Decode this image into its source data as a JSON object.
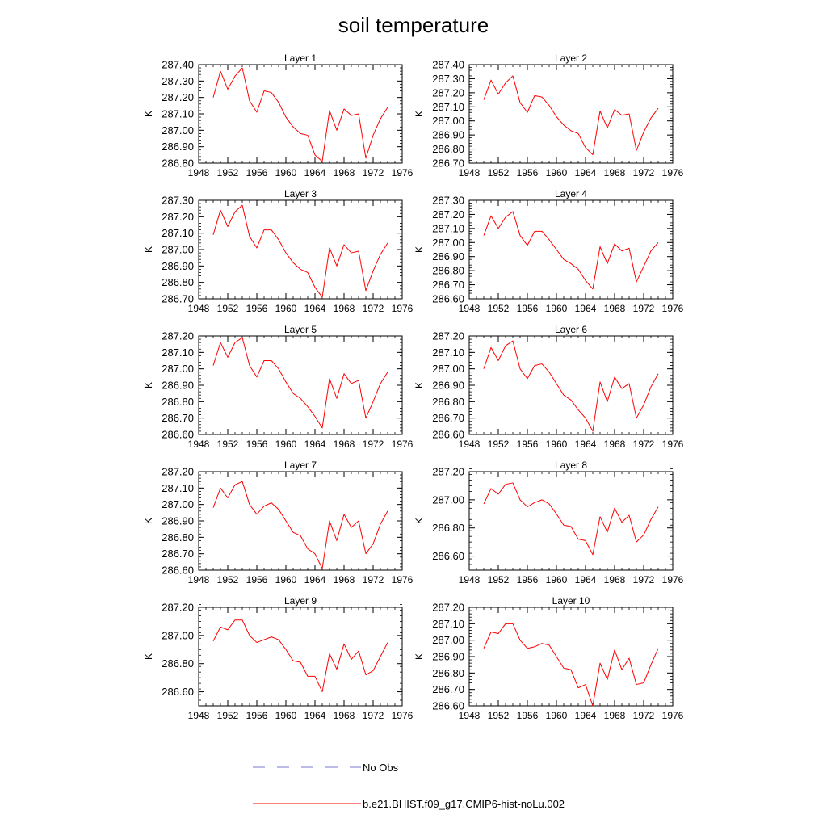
{
  "title": "soil temperature",
  "legend": {
    "items": [
      {
        "label": "No Obs",
        "color": "#7777cc",
        "dash": true
      },
      {
        "label": "b.e21.BHIST.f09_g17.CMIP6-hist-noLu.002",
        "color": "#ff0000",
        "dash": false
      }
    ]
  },
  "chart_data": [
    {
      "type": "line",
      "title": "Layer 1",
      "xlabel": "",
      "ylabel": "K",
      "xlim": [
        1948,
        1976
      ],
      "ylim": [
        286.8,
        287.4
      ],
      "xticks": [
        1948,
        1952,
        1956,
        1960,
        1964,
        1968,
        1972,
        1976
      ],
      "xtick_labels": [
        "1948",
        "1952",
        "1956",
        "1960",
        "1964",
        "1968",
        "1972",
        "1976"
      ],
      "yticks": [
        286.8,
        286.9,
        287.0,
        287.1,
        287.2,
        287.3,
        287.4
      ],
      "ytick_labels": [
        "286.80",
        "286.90",
        "287.00",
        "287.10",
        "287.20",
        "287.30",
        "287.40"
      ],
      "x": [
        1950,
        1951,
        1952,
        1953,
        1954,
        1955,
        1956,
        1957,
        1958,
        1959,
        1960,
        1961,
        1962,
        1963,
        1964,
        1965,
        1966,
        1967,
        1968,
        1969,
        1970,
        1971,
        1972,
        1973,
        1974
      ],
      "series": [
        {
          "name": "b.e21.BHIST.f09_g17.CMIP6-hist-noLu.002",
          "values": [
            287.2,
            287.36,
            287.25,
            287.33,
            287.38,
            287.18,
            287.11,
            287.24,
            287.23,
            287.17,
            287.08,
            287.02,
            286.98,
            286.97,
            286.85,
            286.81,
            287.12,
            287.0,
            287.13,
            287.09,
            287.1,
            286.83,
            286.97,
            287.07,
            287.14
          ]
        }
      ]
    },
    {
      "type": "line",
      "title": "Layer 2",
      "xlabel": "",
      "ylabel": "K",
      "xlim": [
        1948,
        1976
      ],
      "ylim": [
        286.7,
        287.4
      ],
      "xticks": [
        1948,
        1952,
        1956,
        1960,
        1964,
        1968,
        1972,
        1976
      ],
      "xtick_labels": [
        "1948",
        "1952",
        "1956",
        "1960",
        "1964",
        "1968",
        "1972",
        "1976"
      ],
      "yticks": [
        286.7,
        286.8,
        286.9,
        287.0,
        287.1,
        287.2,
        287.3,
        287.4
      ],
      "ytick_labels": [
        "286.70",
        "286.80",
        "286.90",
        "287.00",
        "287.10",
        "287.20",
        "287.30",
        "287.40"
      ],
      "x": [
        1950,
        1951,
        1952,
        1953,
        1954,
        1955,
        1956,
        1957,
        1958,
        1959,
        1960,
        1961,
        1962,
        1963,
        1964,
        1965,
        1966,
        1967,
        1968,
        1969,
        1970,
        1971,
        1972,
        1973,
        1974
      ],
      "series": [
        {
          "name": "b.e21.BHIST.f09_g17.CMIP6-hist-noLu.002",
          "values": [
            287.15,
            287.29,
            287.19,
            287.27,
            287.32,
            287.13,
            287.06,
            287.18,
            287.17,
            287.11,
            287.03,
            286.97,
            286.93,
            286.91,
            286.81,
            286.76,
            287.07,
            286.95,
            287.08,
            287.04,
            287.05,
            286.79,
            286.92,
            287.02,
            287.09
          ]
        }
      ]
    },
    {
      "type": "line",
      "title": "Layer 3",
      "xlabel": "",
      "ylabel": "K",
      "xlim": [
        1948,
        1976
      ],
      "ylim": [
        286.7,
        287.3
      ],
      "xticks": [
        1948,
        1952,
        1956,
        1960,
        1964,
        1968,
        1972,
        1976
      ],
      "xtick_labels": [
        "1948",
        "1952",
        "1956",
        "1960",
        "1964",
        "1968",
        "1972",
        "1976"
      ],
      "yticks": [
        286.7,
        286.8,
        286.9,
        287.0,
        287.1,
        287.2,
        287.3
      ],
      "ytick_labels": [
        "286.70",
        "286.80",
        "286.90",
        "287.00",
        "287.10",
        "287.20",
        "287.30"
      ],
      "x": [
        1950,
        1951,
        1952,
        1953,
        1954,
        1955,
        1956,
        1957,
        1958,
        1959,
        1960,
        1961,
        1962,
        1963,
        1964,
        1965,
        1966,
        1967,
        1968,
        1969,
        1970,
        1971,
        1972,
        1973,
        1974
      ],
      "series": [
        {
          "name": "b.e21.BHIST.f09_g17.CMIP6-hist-noLu.002",
          "values": [
            287.09,
            287.24,
            287.14,
            287.23,
            287.27,
            287.08,
            287.01,
            287.12,
            287.12,
            287.06,
            286.98,
            286.92,
            286.88,
            286.86,
            286.77,
            286.71,
            287.01,
            286.9,
            287.03,
            286.98,
            286.99,
            286.75,
            286.87,
            286.97,
            287.04
          ]
        }
      ]
    },
    {
      "type": "line",
      "title": "Layer 4",
      "xlabel": "",
      "ylabel": "K",
      "xlim": [
        1948,
        1976
      ],
      "ylim": [
        286.6,
        287.3
      ],
      "xticks": [
        1948,
        1952,
        1956,
        1960,
        1964,
        1968,
        1972,
        1976
      ],
      "xtick_labels": [
        "1948",
        "1952",
        "1956",
        "1960",
        "1964",
        "1968",
        "1972",
        "1976"
      ],
      "yticks": [
        286.6,
        286.7,
        286.8,
        286.9,
        287.0,
        287.1,
        287.2,
        287.3
      ],
      "ytick_labels": [
        "286.60",
        "286.70",
        "286.80",
        "286.90",
        "287.00",
        "287.10",
        "287.20",
        "287.30"
      ],
      "x": [
        1950,
        1951,
        1952,
        1953,
        1954,
        1955,
        1956,
        1957,
        1958,
        1959,
        1960,
        1961,
        1962,
        1963,
        1964,
        1965,
        1966,
        1967,
        1968,
        1969,
        1970,
        1971,
        1972,
        1973,
        1974
      ],
      "series": [
        {
          "name": "b.e21.BHIST.f09_g17.CMIP6-hist-noLu.002",
          "values": [
            287.05,
            287.19,
            287.1,
            287.18,
            287.22,
            287.05,
            286.98,
            287.08,
            287.08,
            287.02,
            286.95,
            286.88,
            286.85,
            286.81,
            286.73,
            286.67,
            286.97,
            286.85,
            286.99,
            286.94,
            286.96,
            286.72,
            286.83,
            286.94,
            287.0
          ]
        }
      ]
    },
    {
      "type": "line",
      "title": "Layer 5",
      "xlabel": "",
      "ylabel": "K",
      "xlim": [
        1948,
        1976
      ],
      "ylim": [
        286.6,
        287.2
      ],
      "xticks": [
        1948,
        1952,
        1956,
        1960,
        1964,
        1968,
        1972,
        1976
      ],
      "xtick_labels": [
        "1948",
        "1952",
        "1956",
        "1960",
        "1964",
        "1968",
        "1972",
        "1976"
      ],
      "yticks": [
        286.6,
        286.7,
        286.8,
        286.9,
        287.0,
        287.1,
        287.2
      ],
      "ytick_labels": [
        "286.60",
        "286.70",
        "286.80",
        "286.90",
        "287.00",
        "287.10",
        "287.20"
      ],
      "x": [
        1950,
        1951,
        1952,
        1953,
        1954,
        1955,
        1956,
        1957,
        1958,
        1959,
        1960,
        1961,
        1962,
        1963,
        1964,
        1965,
        1966,
        1967,
        1968,
        1969,
        1970,
        1971,
        1972,
        1973,
        1974
      ],
      "series": [
        {
          "name": "b.e21.BHIST.f09_g17.CMIP6-hist-noLu.002",
          "values": [
            287.02,
            287.16,
            287.07,
            287.16,
            287.19,
            287.02,
            286.95,
            287.05,
            287.05,
            287.0,
            286.92,
            286.85,
            286.82,
            286.77,
            286.71,
            286.64,
            286.94,
            286.82,
            286.97,
            286.91,
            286.93,
            286.7,
            286.8,
            286.91,
            286.98
          ]
        }
      ]
    },
    {
      "type": "line",
      "title": "Layer 6",
      "xlabel": "",
      "ylabel": "K",
      "xlim": [
        1948,
        1976
      ],
      "ylim": [
        286.6,
        287.2
      ],
      "xticks": [
        1948,
        1952,
        1956,
        1960,
        1964,
        1968,
        1972,
        1976
      ],
      "xtick_labels": [
        "1948",
        "1952",
        "1956",
        "1960",
        "1964",
        "1968",
        "1972",
        "1976"
      ],
      "yticks": [
        286.6,
        286.7,
        286.8,
        286.9,
        287.0,
        287.1,
        287.2
      ],
      "ytick_labels": [
        "286.60",
        "286.70",
        "286.80",
        "286.90",
        "287.00",
        "287.10",
        "287.20"
      ],
      "x": [
        1950,
        1951,
        1952,
        1953,
        1954,
        1955,
        1956,
        1957,
        1958,
        1959,
        1960,
        1961,
        1962,
        1963,
        1964,
        1965,
        1966,
        1967,
        1968,
        1969,
        1970,
        1971,
        1972,
        1973,
        1974
      ],
      "series": [
        {
          "name": "b.e21.BHIST.f09_g17.CMIP6-hist-noLu.002",
          "values": [
            287.0,
            287.13,
            287.05,
            287.14,
            287.17,
            287.0,
            286.94,
            287.02,
            287.03,
            286.98,
            286.91,
            286.84,
            286.81,
            286.75,
            286.7,
            286.62,
            286.92,
            286.8,
            286.95,
            286.88,
            286.91,
            286.7,
            286.78,
            286.89,
            286.97
          ]
        }
      ]
    },
    {
      "type": "line",
      "title": "Layer 7",
      "xlabel": "",
      "ylabel": "K",
      "xlim": [
        1948,
        1976
      ],
      "ylim": [
        286.6,
        287.2
      ],
      "xticks": [
        1948,
        1952,
        1956,
        1960,
        1964,
        1968,
        1972,
        1976
      ],
      "xtick_labels": [
        "1948",
        "1952",
        "1956",
        "1960",
        "1964",
        "1968",
        "1972",
        "1976"
      ],
      "yticks": [
        286.6,
        286.7,
        286.8,
        286.9,
        287.0,
        287.1,
        287.2
      ],
      "ytick_labels": [
        "286.60",
        "286.70",
        "286.80",
        "286.90",
        "287.00",
        "287.10",
        "287.20"
      ],
      "x": [
        1950,
        1951,
        1952,
        1953,
        1954,
        1955,
        1956,
        1957,
        1958,
        1959,
        1960,
        1961,
        1962,
        1963,
        1964,
        1965,
        1966,
        1967,
        1968,
        1969,
        1970,
        1971,
        1972,
        1973,
        1974
      ],
      "series": [
        {
          "name": "b.e21.BHIST.f09_g17.CMIP6-hist-noLu.002",
          "values": [
            286.98,
            287.1,
            287.04,
            287.12,
            287.14,
            287.0,
            286.94,
            286.99,
            287.01,
            286.97,
            286.9,
            286.83,
            286.81,
            286.73,
            286.7,
            286.61,
            286.9,
            286.78,
            286.94,
            286.86,
            286.9,
            286.7,
            286.76,
            286.88,
            286.96
          ]
        }
      ]
    },
    {
      "type": "line",
      "title": "Layer 8",
      "xlabel": "",
      "ylabel": "K",
      "xlim": [
        1948,
        1976
      ],
      "ylim": [
        286.5,
        287.2
      ],
      "xticks": [
        1948,
        1952,
        1956,
        1960,
        1964,
        1968,
        1972,
        1976
      ],
      "xtick_labels": [
        "1948",
        "1952",
        "1956",
        "1960",
        "1964",
        "1968",
        "1972",
        "1976"
      ],
      "yticks": [
        286.6,
        286.8,
        287.0,
        287.2
      ],
      "ytick_labels": [
        "286.60",
        "286.80",
        "287.00",
        "287.20"
      ],
      "x": [
        1950,
        1951,
        1952,
        1953,
        1954,
        1955,
        1956,
        1957,
        1958,
        1959,
        1960,
        1961,
        1962,
        1963,
        1964,
        1965,
        1966,
        1967,
        1968,
        1969,
        1970,
        1971,
        1972,
        1973,
        1974
      ],
      "series": [
        {
          "name": "b.e21.BHIST.f09_g17.CMIP6-hist-noLu.002",
          "values": [
            286.97,
            287.08,
            287.04,
            287.11,
            287.12,
            287.0,
            286.95,
            286.98,
            287.0,
            286.97,
            286.9,
            286.82,
            286.81,
            286.72,
            286.71,
            286.61,
            286.88,
            286.77,
            286.94,
            286.84,
            286.89,
            286.7,
            286.75,
            286.86,
            286.95
          ]
        }
      ]
    },
    {
      "type": "line",
      "title": "Layer 9",
      "xlabel": "",
      "ylabel": "K",
      "xlim": [
        1948,
        1976
      ],
      "ylim": [
        286.5,
        287.2
      ],
      "xticks": [
        1948,
        1952,
        1956,
        1960,
        1964,
        1968,
        1972,
        1976
      ],
      "xtick_labels": [
        "1948",
        "1952",
        "1956",
        "1960",
        "1964",
        "1968",
        "1972",
        "1976"
      ],
      "yticks": [
        286.6,
        286.8,
        287.0,
        287.2
      ],
      "ytick_labels": [
        "286.60",
        "286.80",
        "287.00",
        "287.20"
      ],
      "x": [
        1950,
        1951,
        1952,
        1953,
        1954,
        1955,
        1956,
        1957,
        1958,
        1959,
        1960,
        1961,
        1962,
        1963,
        1964,
        1965,
        1966,
        1967,
        1968,
        1969,
        1970,
        1971,
        1972,
        1973,
        1974
      ],
      "series": [
        {
          "name": "b.e21.BHIST.f09_g17.CMIP6-hist-noLu.002",
          "values": [
            286.96,
            287.06,
            287.04,
            287.11,
            287.11,
            287.0,
            286.95,
            286.97,
            286.99,
            286.97,
            286.9,
            286.82,
            286.81,
            286.71,
            286.71,
            286.6,
            286.87,
            286.76,
            286.94,
            286.83,
            286.89,
            286.72,
            286.75,
            286.85,
            286.95
          ]
        }
      ]
    },
    {
      "type": "line",
      "title": "Layer 10",
      "xlabel": "",
      "ylabel": "K",
      "xlim": [
        1948,
        1976
      ],
      "ylim": [
        286.6,
        287.2
      ],
      "xticks": [
        1948,
        1952,
        1956,
        1960,
        1964,
        1968,
        1972,
        1976
      ],
      "xtick_labels": [
        "1948",
        "1952",
        "1956",
        "1960",
        "1964",
        "1968",
        "1972",
        "1976"
      ],
      "yticks": [
        286.6,
        286.7,
        286.8,
        286.9,
        287.0,
        287.1,
        287.2
      ],
      "ytick_labels": [
        "286.60",
        "286.70",
        "286.80",
        "286.90",
        "287.00",
        "287.10",
        "287.20"
      ],
      "x": [
        1950,
        1951,
        1952,
        1953,
        1954,
        1955,
        1956,
        1957,
        1958,
        1959,
        1960,
        1961,
        1962,
        1963,
        1964,
        1965,
        1966,
        1967,
        1968,
        1969,
        1970,
        1971,
        1972,
        1973,
        1974
      ],
      "series": [
        {
          "name": "b.e21.BHIST.f09_g17.CMIP6-hist-noLu.002",
          "values": [
            286.95,
            287.05,
            287.04,
            287.1,
            287.1,
            287.0,
            286.95,
            286.96,
            286.98,
            286.97,
            286.9,
            286.83,
            286.82,
            286.71,
            286.73,
            286.6,
            286.86,
            286.76,
            286.94,
            286.82,
            286.89,
            286.73,
            286.74,
            286.85,
            286.95
          ]
        }
      ]
    }
  ]
}
